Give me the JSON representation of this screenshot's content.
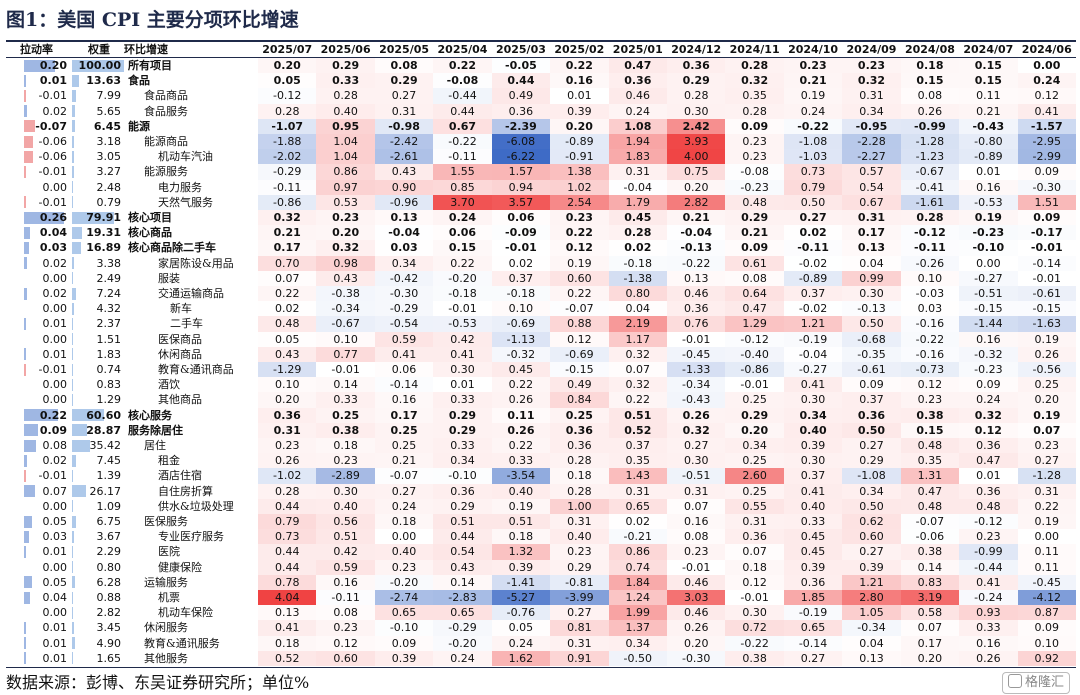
{
  "title": "图1：美国 CPI 主要分项环比增速",
  "source": "数据来源：彭博、东吴证券研究所；单位%",
  "watermark": "格隆汇",
  "colors": {
    "pos": "#ee2b2b",
    "neg": "#2b5cc0",
    "pull_pos": "#f2a6a6",
    "pull_neg": "#9fb7e3",
    "weight_bar": "#aec9ea",
    "rule": "#1f2a4a"
  },
  "headers": {
    "pull": "拉动率",
    "weight": "权重",
    "item": "环比增速",
    "months": [
      "2025/07",
      "2025/06",
      "2025/05",
      "2025/04",
      "2025/03",
      "2025/02",
      "2025/01",
      "2024/12",
      "2024/11",
      "2024/10",
      "2024/09",
      "2024/08",
      "2024/07",
      "2024/06"
    ]
  },
  "chart_data": {
    "type": "heatmap",
    "rows": [
      {
        "pull": "0.20",
        "weight": "100.00",
        "name": "所有项目",
        "level": 0,
        "bold": true,
        "values": [
          "0.20",
          "0.29",
          "0.08",
          "0.22",
          "-0.05",
          "0.22",
          "0.47",
          "0.36",
          "0.28",
          "0.23",
          "0.23",
          "0.18",
          "0.15",
          "0.00"
        ]
      },
      {
        "pull": "0.01",
        "weight": "13.63",
        "name": "食品",
        "level": 0,
        "bold": true,
        "values": [
          "0.05",
          "0.33",
          "0.29",
          "-0.08",
          "0.44",
          "0.16",
          "0.36",
          "0.29",
          "0.32",
          "0.21",
          "0.32",
          "0.15",
          "0.15",
          "0.24"
        ]
      },
      {
        "pull": "-0.01",
        "weight": "7.99",
        "name": "食品商品",
        "level": 1,
        "bold": false,
        "values": [
          "-0.12",
          "0.28",
          "0.27",
          "-0.44",
          "0.49",
          "0.01",
          "0.46",
          "0.28",
          "0.35",
          "0.19",
          "0.31",
          "0.08",
          "0.11",
          "0.12"
        ]
      },
      {
        "pull": "0.02",
        "weight": "5.65",
        "name": "食品服务",
        "level": 1,
        "bold": false,
        "values": [
          "0.28",
          "0.40",
          "0.31",
          "0.44",
          "0.36",
          "0.39",
          "0.24",
          "0.30",
          "0.28",
          "0.24",
          "0.34",
          "0.26",
          "0.21",
          "0.41"
        ]
      },
      {
        "pull": "-0.07",
        "weight": "6.45",
        "name": "能源",
        "level": 0,
        "bold": true,
        "values": [
          "-1.07",
          "0.95",
          "-0.98",
          "0.67",
          "-2.39",
          "0.20",
          "1.08",
          "2.42",
          "0.09",
          "-0.22",
          "-0.95",
          "-0.99",
          "-0.43",
          "-1.57"
        ]
      },
      {
        "pull": "-0.06",
        "weight": "3.18",
        "name": "能源商品",
        "level": 1,
        "bold": false,
        "values": [
          "-1.88",
          "1.04",
          "-2.42",
          "-0.22",
          "-6.08",
          "-0.89",
          "1.94",
          "3.93",
          "0.23",
          "-1.08",
          "-2.28",
          "-1.28",
          "-0.80",
          "-2.95"
        ]
      },
      {
        "pull": "-0.06",
        "weight": "3.05",
        "name": "机动车汽油",
        "level": 2,
        "bold": false,
        "values": [
          "-2.02",
          "1.04",
          "-2.61",
          "-0.11",
          "-6.22",
          "-0.91",
          "1.83",
          "4.00",
          "0.23",
          "-1.03",
          "-2.27",
          "-1.23",
          "-0.89",
          "-2.99"
        ]
      },
      {
        "pull": "-0.01",
        "weight": "3.27",
        "name": "能源服务",
        "level": 1,
        "bold": false,
        "values": [
          "-0.29",
          "0.86",
          "0.43",
          "1.55",
          "1.57",
          "1.38",
          "0.31",
          "0.75",
          "-0.08",
          "0.73",
          "0.57",
          "-0.67",
          "0.01",
          "0.09"
        ]
      },
      {
        "pull": "0.00",
        "weight": "2.48",
        "name": "电力服务",
        "level": 2,
        "bold": false,
        "values": [
          "-0.11",
          "0.97",
          "0.90",
          "0.85",
          "0.94",
          "1.02",
          "-0.04",
          "0.20",
          "-0.23",
          "0.79",
          "0.54",
          "-0.41",
          "0.16",
          "-0.30"
        ]
      },
      {
        "pull": "-0.01",
        "weight": "0.79",
        "name": "天然气服务",
        "level": 2,
        "bold": false,
        "values": [
          "-0.86",
          "0.53",
          "-0.96",
          "3.70",
          "3.57",
          "2.54",
          "1.79",
          "2.82",
          "0.48",
          "0.50",
          "0.67",
          "-1.61",
          "-0.53",
          "1.51"
        ]
      },
      {
        "pull": "0.26",
        "weight": "79.91",
        "name": "核心项目",
        "level": 0,
        "bold": true,
        "values": [
          "0.32",
          "0.23",
          "0.13",
          "0.24",
          "0.06",
          "0.23",
          "0.45",
          "0.21",
          "0.29",
          "0.27",
          "0.31",
          "0.28",
          "0.19",
          "0.09"
        ]
      },
      {
        "pull": "0.04",
        "weight": "19.31",
        "name": "核心商品",
        "level": 0,
        "bold": true,
        "values": [
          "0.21",
          "0.20",
          "-0.04",
          "0.06",
          "-0.09",
          "0.22",
          "0.28",
          "-0.04",
          "0.21",
          "0.02",
          "0.17",
          "-0.12",
          "-0.23",
          "-0.17"
        ]
      },
      {
        "pull": "0.03",
        "weight": "16.89",
        "name": "核心商品除二手车",
        "level": 0,
        "bold": true,
        "values": [
          "0.17",
          "0.32",
          "0.03",
          "0.15",
          "-0.01",
          "0.12",
          "0.02",
          "-0.13",
          "0.09",
          "-0.11",
          "0.13",
          "-0.11",
          "-0.10",
          "-0.01"
        ]
      },
      {
        "pull": "0.02",
        "weight": "3.38",
        "name": "家居陈设&用品",
        "level": 2,
        "bold": false,
        "values": [
          "0.70",
          "0.98",
          "0.34",
          "0.22",
          "0.02",
          "0.19",
          "-0.18",
          "-0.22",
          "0.61",
          "-0.02",
          "0.04",
          "-0.26",
          "0.00",
          "-0.14"
        ]
      },
      {
        "pull": "0.00",
        "weight": "2.49",
        "name": "服装",
        "level": 2,
        "bold": false,
        "values": [
          "0.07",
          "0.43",
          "-0.42",
          "-0.20",
          "0.37",
          "0.60",
          "-1.38",
          "0.13",
          "0.08",
          "-0.89",
          "0.99",
          "0.10",
          "-0.27",
          "-0.01"
        ]
      },
      {
        "pull": "0.02",
        "weight": "7.24",
        "name": "交通运输商品",
        "level": 2,
        "bold": false,
        "values": [
          "0.22",
          "-0.38",
          "-0.30",
          "-0.18",
          "-0.18",
          "0.22",
          "0.80",
          "0.46",
          "0.64",
          "0.37",
          "0.30",
          "-0.03",
          "-0.51",
          "-0.61"
        ]
      },
      {
        "pull": "0.00",
        "weight": "4.32",
        "name": "新车",
        "level": 3,
        "bold": false,
        "values": [
          "0.02",
          "-0.34",
          "-0.29",
          "-0.01",
          "0.10",
          "-0.07",
          "0.04",
          "0.36",
          "0.47",
          "-0.02",
          "-0.13",
          "0.03",
          "-0.15",
          "-0.15"
        ]
      },
      {
        "pull": "0.01",
        "weight": "2.37",
        "name": "二手车",
        "level": 3,
        "bold": false,
        "values": [
          "0.48",
          "-0.67",
          "-0.54",
          "-0.53",
          "-0.69",
          "0.88",
          "2.19",
          "0.76",
          "1.29",
          "1.21",
          "0.50",
          "-0.16",
          "-1.44",
          "-1.63"
        ]
      },
      {
        "pull": "0.00",
        "weight": "1.51",
        "name": "医保商品",
        "level": 2,
        "bold": false,
        "values": [
          "0.05",
          "0.10",
          "0.59",
          "0.42",
          "-1.13",
          "0.12",
          "1.17",
          "-0.01",
          "-0.12",
          "-0.19",
          "-0.68",
          "-0.22",
          "0.16",
          "0.19"
        ]
      },
      {
        "pull": "0.01",
        "weight": "1.83",
        "name": "休闲商品",
        "level": 2,
        "bold": false,
        "values": [
          "0.43",
          "0.77",
          "0.41",
          "0.41",
          "-0.32",
          "-0.69",
          "0.32",
          "-0.45",
          "-0.40",
          "-0.04",
          "-0.35",
          "-0.16",
          "-0.32",
          "0.26"
        ]
      },
      {
        "pull": "-0.01",
        "weight": "0.74",
        "name": "教育&通讯商品",
        "level": 2,
        "bold": false,
        "values": [
          "-1.29",
          "-0.01",
          "0.06",
          "0.30",
          "0.45",
          "-0.15",
          "0.07",
          "-1.33",
          "-0.86",
          "-0.27",
          "-0.61",
          "-0.73",
          "-0.23",
          "-0.56"
        ]
      },
      {
        "pull": "0.00",
        "weight": "0.83",
        "name": "酒饮",
        "level": 2,
        "bold": false,
        "values": [
          "0.10",
          "0.14",
          "-0.14",
          "0.01",
          "0.22",
          "0.49",
          "0.32",
          "-0.34",
          "-0.01",
          "0.41",
          "0.09",
          "0.12",
          "0.09",
          "0.25"
        ]
      },
      {
        "pull": "0.00",
        "weight": "1.29",
        "name": "其他商品",
        "level": 2,
        "bold": false,
        "values": [
          "0.20",
          "0.33",
          "0.16",
          "0.33",
          "0.26",
          "0.84",
          "0.22",
          "-0.43",
          "0.25",
          "0.30",
          "0.37",
          "0.23",
          "0.24",
          "0.20"
        ]
      },
      {
        "pull": "0.22",
        "weight": "60.60",
        "name": "核心服务",
        "level": 0,
        "bold": true,
        "values": [
          "0.36",
          "0.25",
          "0.17",
          "0.29",
          "0.11",
          "0.25",
          "0.51",
          "0.26",
          "0.29",
          "0.34",
          "0.36",
          "0.38",
          "0.32",
          "0.19"
        ]
      },
      {
        "pull": "0.09",
        "weight": "28.87",
        "name": "服务除居住",
        "level": 0,
        "bold": true,
        "values": [
          "0.31",
          "0.38",
          "0.25",
          "0.29",
          "0.26",
          "0.36",
          "0.52",
          "0.32",
          "0.20",
          "0.40",
          "0.50",
          "0.15",
          "0.12",
          "0.07"
        ]
      },
      {
        "pull": "0.08",
        "weight": "35.42",
        "name": "居住",
        "level": 1,
        "bold": false,
        "values": [
          "0.23",
          "0.18",
          "0.25",
          "0.33",
          "0.22",
          "0.36",
          "0.37",
          "0.27",
          "0.34",
          "0.39",
          "0.27",
          "0.48",
          "0.36",
          "0.23"
        ]
      },
      {
        "pull": "0.02",
        "weight": "7.45",
        "name": "租金",
        "level": 2,
        "bold": false,
        "values": [
          "0.26",
          "0.23",
          "0.21",
          "0.34",
          "0.33",
          "0.28",
          "0.35",
          "0.30",
          "0.25",
          "0.30",
          "0.29",
          "0.35",
          "0.47",
          "0.27"
        ]
      },
      {
        "pull": "-0.01",
        "weight": "1.39",
        "name": "酒店住宿",
        "level": 2,
        "bold": false,
        "values": [
          "-1.02",
          "-2.89",
          "-0.07",
          "-0.10",
          "-3.54",
          "0.18",
          "1.43",
          "-0.51",
          "2.60",
          "0.37",
          "-1.08",
          "1.31",
          "0.01",
          "-1.28"
        ]
      },
      {
        "pull": "0.07",
        "weight": "26.17",
        "name": "自住房折算",
        "level": 2,
        "bold": false,
        "values": [
          "0.28",
          "0.30",
          "0.27",
          "0.36",
          "0.40",
          "0.28",
          "0.31",
          "0.31",
          "0.25",
          "0.41",
          "0.34",
          "0.47",
          "0.36",
          "0.31"
        ]
      },
      {
        "pull": "0.00",
        "weight": "1.09",
        "name": "供水&垃圾处理",
        "level": 2,
        "bold": false,
        "values": [
          "0.44",
          "0.40",
          "0.24",
          "0.29",
          "0.19",
          "1.00",
          "0.65",
          "0.07",
          "0.55",
          "0.40",
          "0.50",
          "0.48",
          "0.48",
          "0.22"
        ]
      },
      {
        "pull": "0.05",
        "weight": "6.75",
        "name": "医保服务",
        "level": 1,
        "bold": false,
        "values": [
          "0.79",
          "0.56",
          "0.18",
          "0.51",
          "0.51",
          "0.31",
          "0.02",
          "0.16",
          "0.31",
          "0.33",
          "0.62",
          "-0.07",
          "-0.12",
          "0.19"
        ]
      },
      {
        "pull": "0.03",
        "weight": "3.67",
        "name": "专业医疗服务",
        "level": 2,
        "bold": false,
        "values": [
          "0.73",
          "0.51",
          "0.00",
          "0.44",
          "0.18",
          "0.40",
          "-0.21",
          "0.08",
          "0.36",
          "0.45",
          "0.60",
          "-0.06",
          "0.23",
          "0.00"
        ]
      },
      {
        "pull": "0.01",
        "weight": "2.29",
        "name": "医院",
        "level": 2,
        "bold": false,
        "values": [
          "0.44",
          "0.42",
          "0.40",
          "0.54",
          "1.32",
          "0.23",
          "0.86",
          "0.23",
          "0.07",
          "0.45",
          "0.27",
          "0.38",
          "-0.99",
          "0.11"
        ]
      },
      {
        "pull": "0.00",
        "weight": "0.80",
        "name": "健康保险",
        "level": 2,
        "bold": false,
        "values": [
          "0.44",
          "0.59",
          "0.23",
          "0.43",
          "0.39",
          "0.29",
          "0.74",
          "-0.01",
          "0.18",
          "0.39",
          "0.39",
          "0.14",
          "-0.44",
          "0.11"
        ]
      },
      {
        "pull": "0.05",
        "weight": "6.28",
        "name": "运输服务",
        "level": 1,
        "bold": false,
        "values": [
          "0.78",
          "0.16",
          "-0.20",
          "0.14",
          "-1.41",
          "-0.81",
          "1.84",
          "0.46",
          "0.12",
          "0.36",
          "1.21",
          "0.83",
          "0.41",
          "-0.45"
        ]
      },
      {
        "pull": "0.04",
        "weight": "0.88",
        "name": "机票",
        "level": 2,
        "bold": false,
        "values": [
          "4.04",
          "-0.11",
          "-2.74",
          "-2.83",
          "-5.27",
          "-3.99",
          "1.24",
          "3.03",
          "-0.01",
          "1.85",
          "2.80",
          "3.19",
          "-0.24",
          "-4.12"
        ]
      },
      {
        "pull": "0.00",
        "weight": "2.82",
        "name": "机动车保险",
        "level": 2,
        "bold": false,
        "values": [
          "0.13",
          "0.08",
          "0.65",
          "0.65",
          "-0.76",
          "0.27",
          "1.99",
          "0.46",
          "0.30",
          "-0.19",
          "1.05",
          "0.58",
          "0.93",
          "0.87"
        ]
      },
      {
        "pull": "0.01",
        "weight": "3.45",
        "name": "休闲服务",
        "level": 1,
        "bold": false,
        "values": [
          "0.41",
          "0.23",
          "-0.10",
          "-0.29",
          "0.05",
          "0.81",
          "1.37",
          "0.26",
          "0.72",
          "0.65",
          "-0.34",
          "0.07",
          "0.33",
          "0.09"
        ]
      },
      {
        "pull": "0.01",
        "weight": "4.90",
        "name": "教育&通讯服务",
        "level": 1,
        "bold": false,
        "values": [
          "0.18",
          "0.12",
          "0.09",
          "-0.20",
          "0.24",
          "0.31",
          "0.34",
          "0.20",
          "-0.22",
          "-0.14",
          "0.04",
          "0.17",
          "0.16",
          "0.10"
        ]
      },
      {
        "pull": "0.01",
        "weight": "1.65",
        "name": "其他服务",
        "level": 1,
        "bold": false,
        "values": [
          "0.52",
          "0.60",
          "0.39",
          "0.24",
          "1.62",
          "0.91",
          "-0.50",
          "-0.30",
          "0.38",
          "0.27",
          "0.13",
          "0.20",
          "0.26",
          "0.92"
        ]
      }
    ]
  }
}
